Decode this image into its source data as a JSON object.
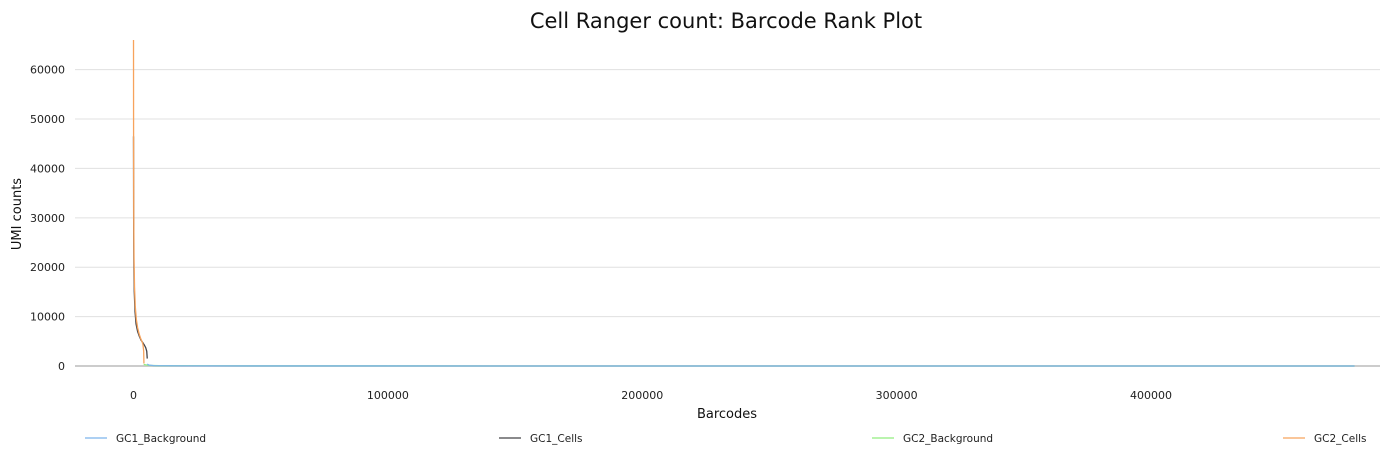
{
  "chart_data": {
    "type": "line",
    "title": "Cell Ranger count: Barcode Rank Plot",
    "xlabel": "Barcodes",
    "ylabel": "UMI counts",
    "xlim": [
      -23000,
      490000
    ],
    "ylim": [
      0,
      66000
    ],
    "x_ticks": [
      0,
      100000,
      200000,
      300000,
      400000
    ],
    "y_ticks": [
      0,
      10000,
      20000,
      30000,
      40000,
      50000,
      60000
    ],
    "grid": true,
    "legend_position": "bottom",
    "series": [
      {
        "name": "GC1_Background",
        "color": "#7cb5ec",
        "points": [
          [
            5400,
            400
          ],
          [
            6000,
            200
          ],
          [
            8000,
            80
          ],
          [
            20000,
            30
          ],
          [
            60000,
            10
          ],
          [
            200000,
            4
          ],
          [
            400000,
            2
          ],
          [
            480000,
            1
          ]
        ]
      },
      {
        "name": "GC1_Cells",
        "color": "#434348",
        "points": [
          [
            1,
            46500
          ],
          [
            50,
            30000
          ],
          [
            150,
            20000
          ],
          [
            300,
            15000
          ],
          [
            600,
            11000
          ],
          [
            1000,
            8500
          ],
          [
            1600,
            7000
          ],
          [
            2300,
            6000
          ],
          [
            3000,
            5200
          ],
          [
            3700,
            4700
          ],
          [
            4300,
            4200
          ],
          [
            4800,
            3700
          ],
          [
            5200,
            3000
          ],
          [
            5400,
            1500
          ]
        ]
      },
      {
        "name": "GC2_Background",
        "color": "#90ed7d",
        "points": [
          [
            4000,
            300
          ],
          [
            6000,
            120
          ],
          [
            10000,
            60
          ],
          [
            30000,
            20
          ],
          [
            100000,
            8
          ],
          [
            300000,
            3
          ],
          [
            480000,
            1
          ]
        ]
      },
      {
        "name": "GC2_Cells",
        "color": "#f7a35c",
        "points": [
          [
            1,
            66000
          ],
          [
            30,
            45000
          ],
          [
            100,
            30000
          ],
          [
            200,
            22000
          ],
          [
            400,
            16000
          ],
          [
            700,
            12000
          ],
          [
            1100,
            9500
          ],
          [
            1600,
            7800
          ],
          [
            2200,
            6500
          ],
          [
            2800,
            5600
          ],
          [
            3300,
            5000
          ],
          [
            3700,
            4400
          ],
          [
            4000,
            3000
          ],
          [
            4100,
            500
          ]
        ]
      }
    ]
  }
}
